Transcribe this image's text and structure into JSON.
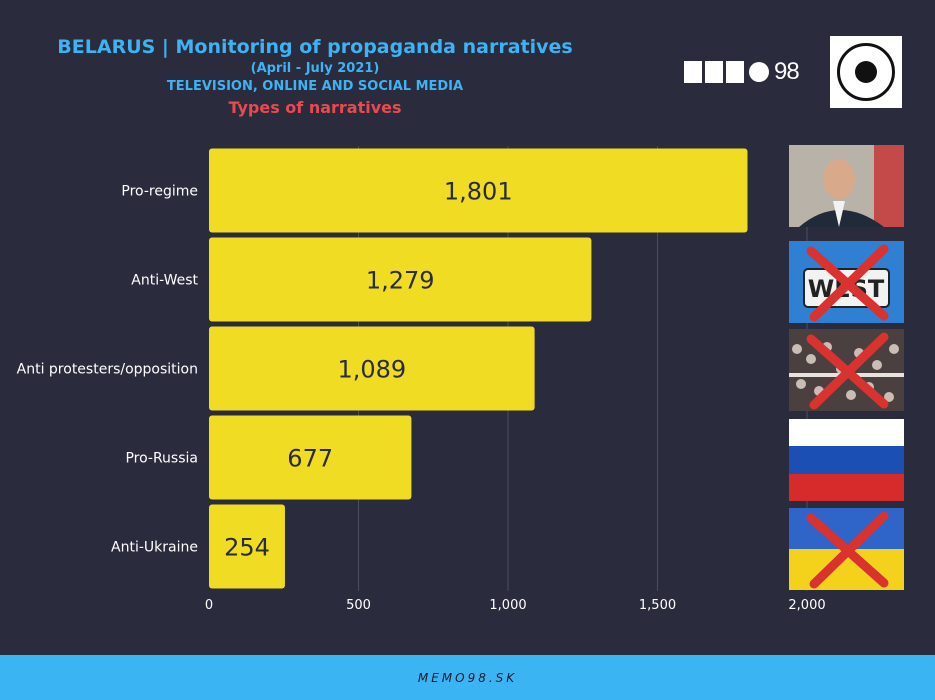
{
  "header": {
    "title": "BELARUS | Monitoring of propaganda narratives",
    "period": "(April - July 2021)",
    "media": "TELEVISION, ONLINE AND SOCIAL MEDIA",
    "subtitle": "Types of narratives"
  },
  "logo": {
    "text": "98"
  },
  "footer": {
    "text": "MEMO98.SK"
  },
  "colors": {
    "background": "#2a2b3d",
    "bar": "#f0dc22",
    "title": "#3eb3f3",
    "subtitle": "#e84a4f",
    "footer": "#3ab4f2"
  },
  "chart_data": {
    "type": "bar",
    "orientation": "horizontal",
    "categories": [
      "Pro-regime",
      "Anti-West",
      "Anti protesters/opposition",
      "Pro-Russia",
      "Anti-Ukraine"
    ],
    "values": [
      1801,
      1279,
      1089,
      677,
      254
    ],
    "value_labels": [
      "1,801",
      "1,279",
      "1,089",
      "677",
      "254"
    ],
    "xlim": [
      0,
      2000
    ],
    "ticks": [
      0,
      500,
      1000,
      1500,
      2000
    ],
    "tick_labels": [
      "0",
      "500",
      "1,000",
      "1,500",
      "2,000"
    ],
    "grid": true
  }
}
